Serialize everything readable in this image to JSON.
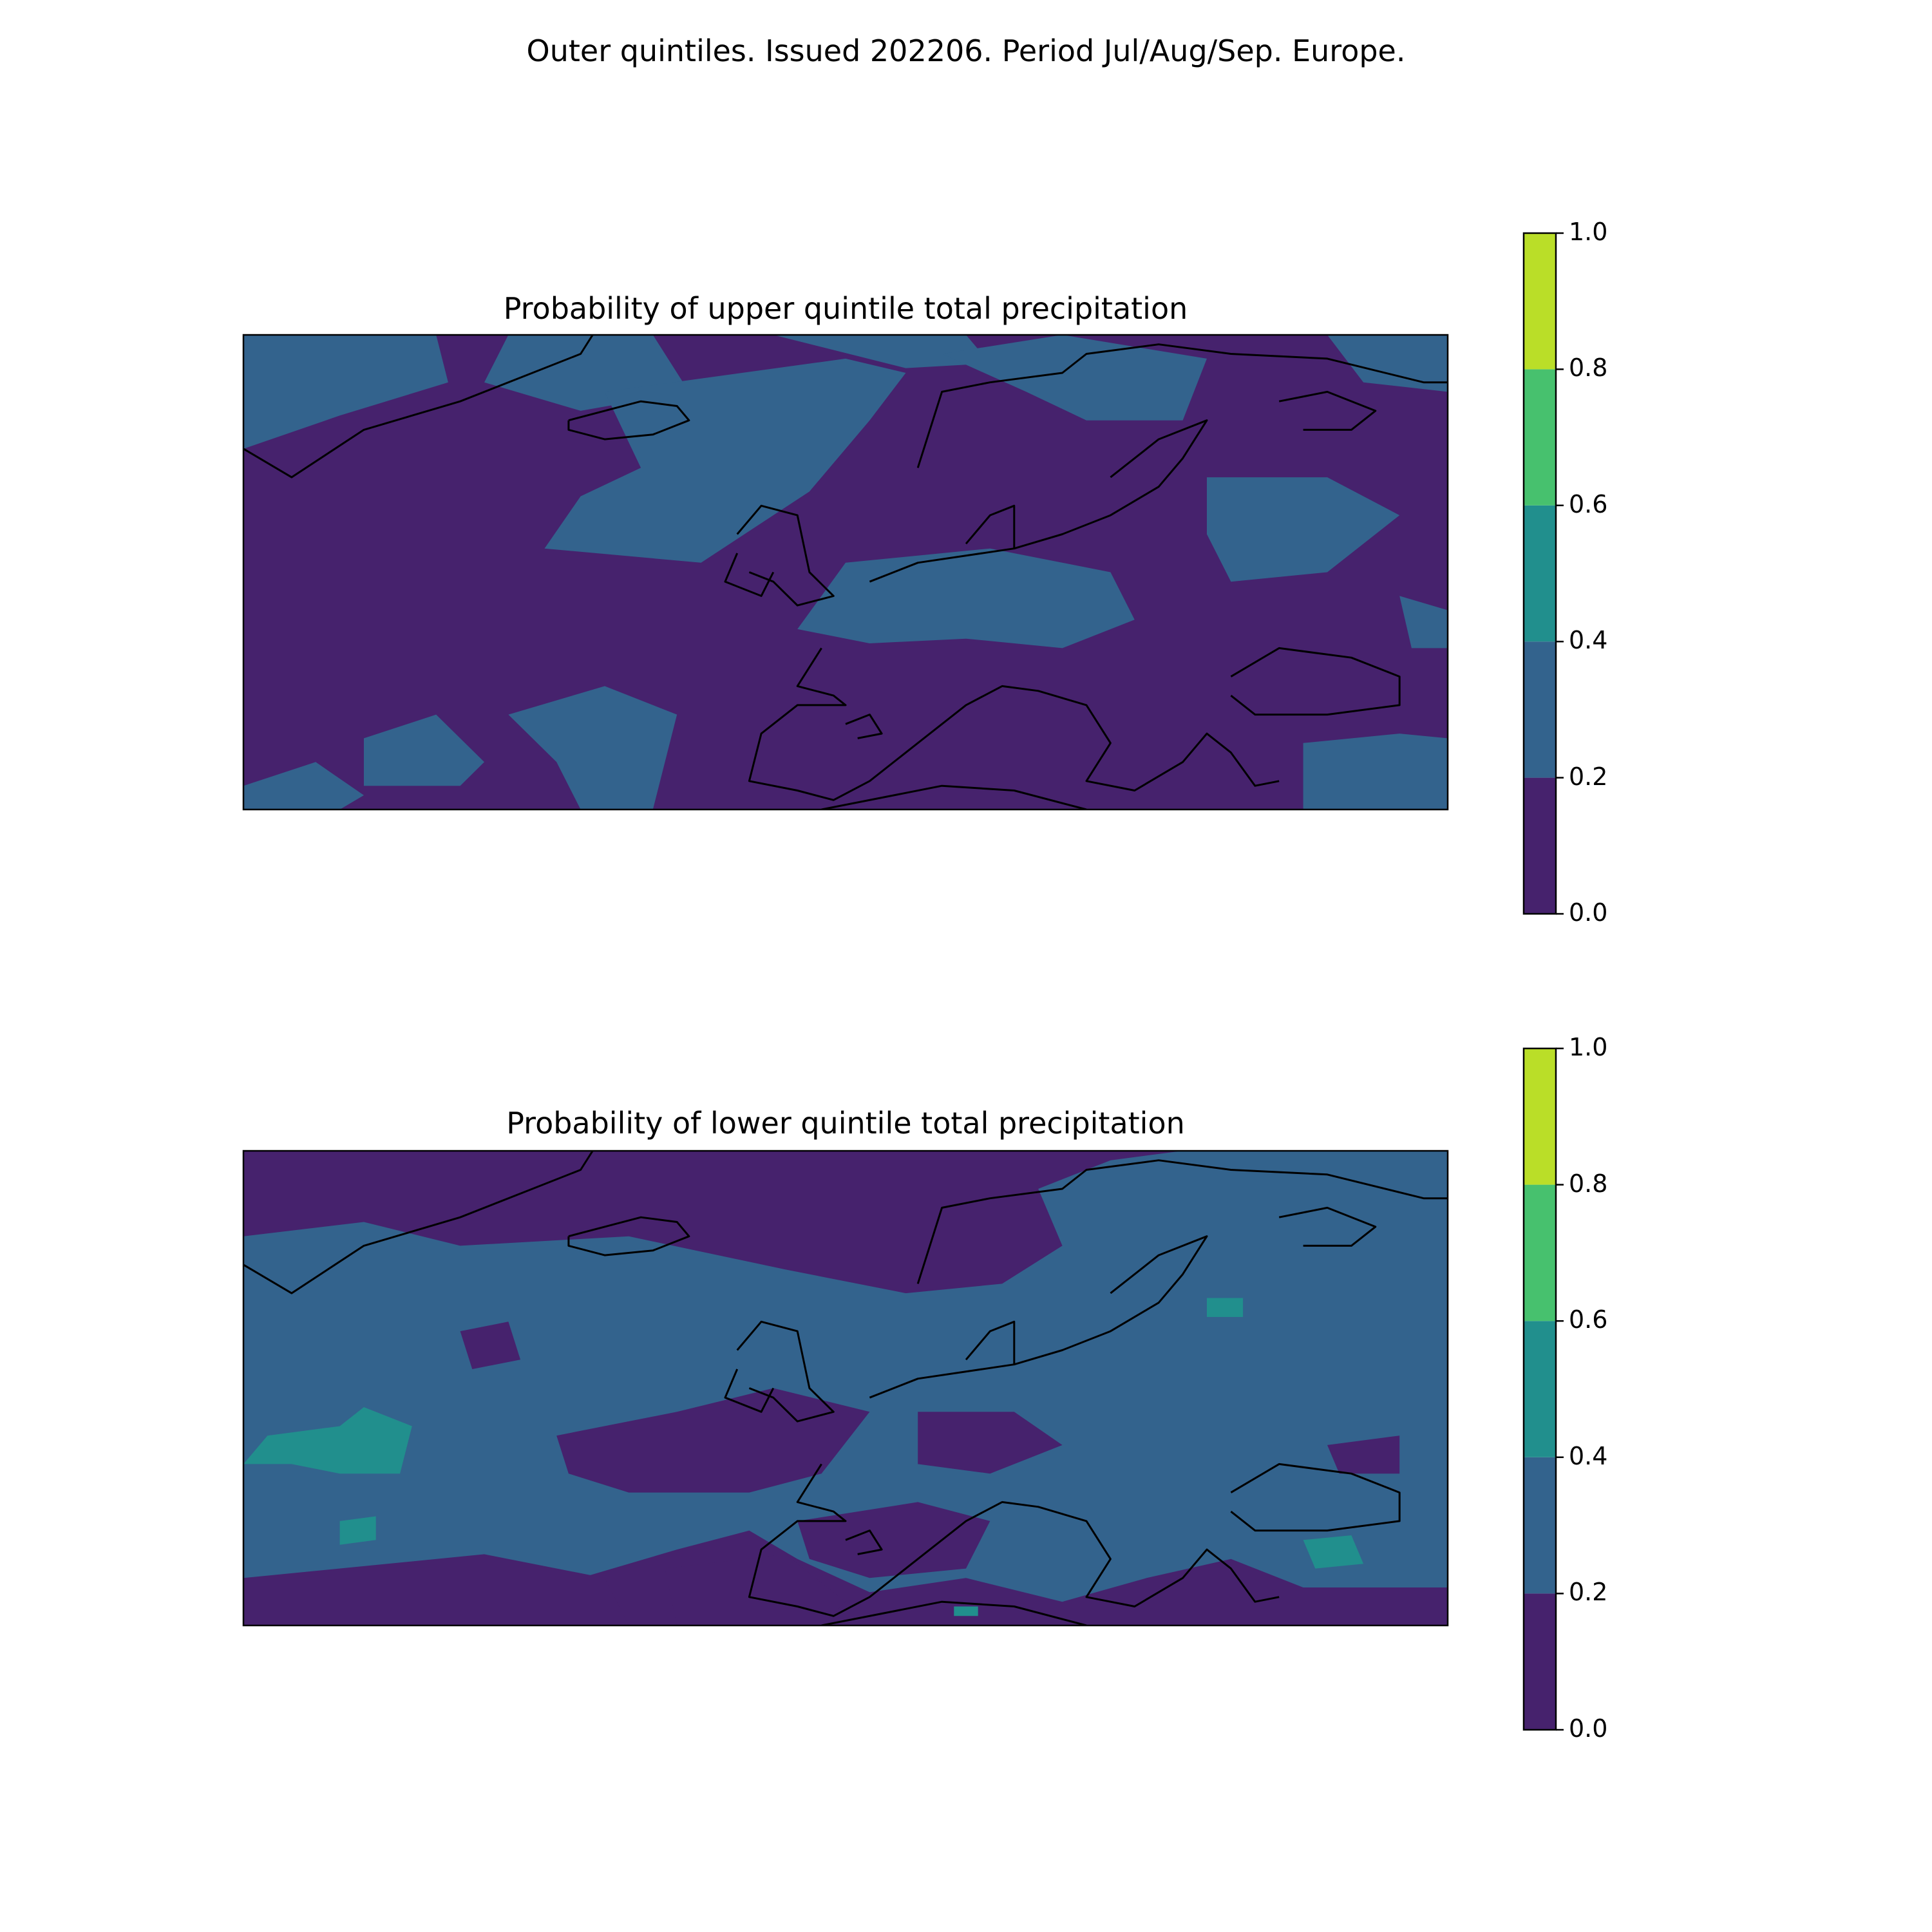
{
  "suptitle": "Outer quintiles. Issued 202206. Period Jul/Aug/Sep. Europe.",
  "colors": {
    "bin_0": "#46226d",
    "bin_1": "#33638d",
    "bin_2": "#218f8d",
    "bin_3": "#47c16e",
    "bin_4": "#bade28",
    "coast": "#000000"
  },
  "chart_data": [
    {
      "type": "heatmap",
      "title": "Probability of upper quintile total precipitation",
      "region": "Europe",
      "colorbar": {
        "levels": [
          0.0,
          0.2,
          0.4,
          0.6,
          0.8,
          1.0
        ],
        "tick_labels": [
          "0.0",
          "0.2",
          "0.4",
          "0.6",
          "0.8",
          "1.0"
        ]
      },
      "dominant_bins": [
        "0.0-0.2",
        "0.2-0.4"
      ]
    },
    {
      "type": "heatmap",
      "title": "Probability of lower quintile total precipitation",
      "region": "Europe",
      "colorbar": {
        "levels": [
          0.0,
          0.2,
          0.4,
          0.6,
          0.8,
          1.0
        ],
        "tick_labels": [
          "0.0",
          "0.2",
          "0.4",
          "0.6",
          "0.8",
          "1.0"
        ]
      },
      "dominant_bins": [
        "0.2-0.4",
        "0.0-0.2"
      ],
      "minor_bins": [
        "0.4-0.6"
      ]
    }
  ]
}
